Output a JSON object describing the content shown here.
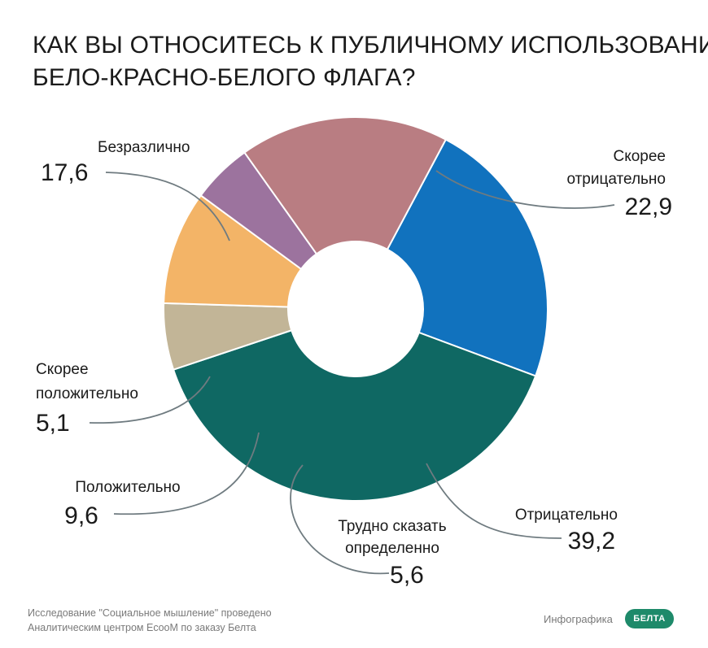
{
  "title_lines": [
    "КАК ВЫ ОТНОСИТЕСЬ К ПУБЛИЧНОМУ ИСПОЛЬЗОВАНИЮ",
    "БЕЛО-КРАСНО-БЕЛОГО ФЛАГА?"
  ],
  "chart_data": {
    "type": "pie",
    "donut": true,
    "slices": [
      {
        "label": "Скорее отрицательно",
        "label_lines": [
          "Скорее",
          "отрицательно"
        ],
        "value": 22.9,
        "value_text": "22,9",
        "color": "#1172be"
      },
      {
        "label": "Отрицательно",
        "label_lines": [
          "Отрицательно"
        ],
        "value": 39.2,
        "value_text": "39,2",
        "color": "#0f6863"
      },
      {
        "label": "Трудно сказать определенно",
        "label_lines": [
          "Трудно сказать",
          "определенно"
        ],
        "value": 5.6,
        "value_text": "5,6",
        "color": "#c2b597"
      },
      {
        "label": "Положительно",
        "label_lines": [
          "Положительно"
        ],
        "value": 9.6,
        "value_text": "9,6",
        "color": "#f3b467"
      },
      {
        "label": "Скорее положительно",
        "label_lines": [
          "Скорее",
          "положительно"
        ],
        "value": 5.1,
        "value_text": "5,1",
        "color": "#9c739e"
      },
      {
        "label": "Безразлично",
        "label_lines": [
          "Безразлично"
        ],
        "value": 17.6,
        "value_text": "17,6",
        "color": "#b97d82"
      }
    ]
  },
  "footer": {
    "line1": "Исследование \"Социальное мышление\" проведено",
    "line2": "Аналитическим центром EcooM по заказу Белта"
  },
  "credit": "Инфографика",
  "logo_text": "БЕЛТА"
}
